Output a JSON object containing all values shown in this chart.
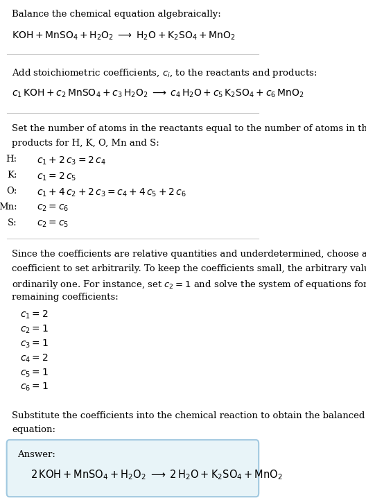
{
  "bg_color": "#ffffff",
  "text_color": "#000000",
  "section1_title": "Balance the chemical equation algebraically:",
  "section1_eq": "$\\mathrm{KOH + MnSO_4 + H_2O_2 \\;\\longrightarrow\\; H_2O + K_2SO_4 + MnO_2}$",
  "section2_title": "Add stoichiometric coefficients, $c_i$, to the reactants and products:",
  "section2_eq": "$c_1\\,\\mathrm{KOH} + c_2\\,\\mathrm{MnSO_4} + c_3\\,\\mathrm{H_2O_2} \\;\\longrightarrow\\; c_4\\,\\mathrm{H_2O} + c_5\\,\\mathrm{K_2SO_4} + c_6\\,\\mathrm{MnO_2}$",
  "section3_title": "Set the number of atoms in the reactants equal to the number of atoms in the\nproducts for H, K, O, Mn and S:",
  "equations": [
    [
      "H:",
      "$c_1 + 2\\,c_3 = 2\\,c_4$"
    ],
    [
      "K:",
      "$c_1 = 2\\,c_5$"
    ],
    [
      "O:",
      "$c_1 + 4\\,c_2 + 2\\,c_3 = c_4 + 4\\,c_5 + 2\\,c_6$"
    ],
    [
      "Mn:",
      "$c_2 = c_6$"
    ],
    [
      "S:",
      "$c_2 = c_5$"
    ]
  ],
  "section4_text": "Since the coefficients are relative quantities and underdetermined, choose a\ncoefficient to set arbitrarily. To keep the coefficients small, the arbitrary value is\nordinarily one. For instance, set $c_2 = 1$ and solve the system of equations for the\nremaining coefficients:",
  "coeff_lines": [
    "$c_1 = 2$",
    "$c_2 = 1$",
    "$c_3 = 1$",
    "$c_4 = 2$",
    "$c_5 = 1$",
    "$c_6 = 1$"
  ],
  "section5_text": "Substitute the coefficients into the chemical reaction to obtain the balanced\nequation:",
  "answer_label": "Answer:",
  "answer_eq": "$2\\,\\mathrm{KOH + MnSO_4 + H_2O_2 \\;\\longrightarrow\\; 2\\,H_2O + K_2SO_4 + MnO_2}$",
  "answer_box_color": "#e8f4f8",
  "answer_box_edge": "#a0c8e0",
  "divider_color": "#cccccc"
}
